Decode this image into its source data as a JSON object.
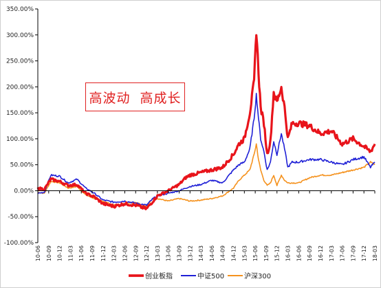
{
  "chart_data": {
    "type": "line",
    "yticks": [
      "-100.00%",
      "-50.00%",
      "0.00%",
      "50.00%",
      "100.00%",
      "150.00%",
      "200.00%",
      "250.00%",
      "300.00%",
      "350.00%"
    ],
    "ytick_values": [
      -100,
      -50,
      0,
      50,
      100,
      150,
      200,
      250,
      300,
      350
    ],
    "ylim": [
      -100,
      350
    ],
    "xticks": [
      "10-06",
      "10-09",
      "10-12",
      "11-03",
      "11-06",
      "11-09",
      "11-12",
      "12-03",
      "12-06",
      "12-09",
      "12-12",
      "13-03",
      "13-06",
      "13-09",
      "13-12",
      "14-03",
      "14-06",
      "14-09",
      "14-12",
      "15-03",
      "15-06",
      "15-09",
      "15-12",
      "16-03",
      "16-06",
      "16-09",
      "16-12",
      "17-03",
      "17-06",
      "17-09",
      "17-12",
      "18-03"
    ],
    "grid": false,
    "legend_position": "bottom",
    "annotation": "高波动  高成长",
    "series": [
      {
        "name": "创业板指",
        "color": "#e8141b",
        "x": [
          0,
          0.6,
          1.2,
          2,
          2.8,
          3.6,
          4.4,
          5.2,
          6,
          7,
          8,
          9,
          10,
          10.6,
          11,
          12,
          13,
          13.6,
          14,
          15,
          16,
          17,
          18,
          18.5,
          19,
          19.5,
          19.9,
          20.1,
          20.3,
          20.5,
          20.8,
          21.1,
          21.4,
          21.7,
          22,
          22.4,
          22.7,
          23,
          23.4,
          24,
          25,
          26,
          27,
          28,
          29,
          30,
          30.6,
          31
        ],
        "values": [
          5,
          3,
          22,
          18,
          10,
          12,
          -5,
          -12,
          -25,
          -30,
          -25,
          -28,
          -35,
          -20,
          -10,
          0,
          12,
          25,
          30,
          35,
          40,
          45,
          70,
          90,
          100,
          150,
          210,
          310,
          230,
          160,
          130,
          70,
          95,
          190,
          170,
          200,
          160,
          100,
          130,
          130,
          125,
          110,
          115,
          90,
          100,
          85,
          75,
          90
        ]
      },
      {
        "name": "中证500",
        "color": "#1f20d6",
        "x": [
          0,
          0.6,
          1.2,
          2,
          2.8,
          3.6,
          4.4,
          5.2,
          6,
          7,
          8,
          9,
          10,
          10.6,
          11,
          12,
          13,
          13.6,
          14,
          15,
          16,
          17,
          18,
          18.5,
          19,
          19.5,
          19.9,
          20.1,
          20.3,
          20.5,
          20.8,
          21.1,
          21.4,
          21.7,
          22,
          22.4,
          22.7,
          23,
          23.4,
          24,
          25,
          26,
          27,
          28,
          29,
          30,
          30.6,
          31
        ],
        "values": [
          -5,
          -3,
          30,
          28,
          15,
          22,
          5,
          -5,
          -18,
          -22,
          -20,
          -24,
          -28,
          -15,
          -10,
          -5,
          0,
          5,
          8,
          12,
          20,
          15,
          40,
          50,
          55,
          80,
          140,
          185,
          140,
          100,
          75,
          40,
          55,
          95,
          70,
          110,
          80,
          45,
          55,
          55,
          60,
          60,
          55,
          50,
          60,
          65,
          45,
          55
        ]
      },
      {
        "name": "沪深300",
        "color": "#f5921e",
        "x": [
          0,
          0.6,
          1.2,
          2,
          2.8,
          3.6,
          4.4,
          5.2,
          6,
          7,
          8,
          9,
          10,
          10.6,
          11,
          12,
          13,
          13.6,
          14,
          15,
          16,
          17,
          18,
          18.5,
          19,
          19.5,
          19.9,
          20.1,
          20.3,
          20.5,
          20.8,
          21.1,
          21.4,
          21.7,
          22,
          22.4,
          22.7,
          23,
          23.4,
          24,
          25,
          26,
          27,
          28,
          29,
          30,
          30.6,
          31
        ],
        "values": [
          -3,
          -5,
          18,
          15,
          5,
          8,
          -8,
          -15,
          -20,
          -28,
          -25,
          -22,
          -30,
          -15,
          -15,
          -20,
          -15,
          -18,
          -20,
          -18,
          -15,
          -10,
          5,
          20,
          30,
          40,
          70,
          90,
          60,
          40,
          20,
          10,
          15,
          30,
          10,
          30,
          20,
          15,
          15,
          15,
          25,
          30,
          30,
          35,
          40,
          45,
          55,
          50
        ]
      }
    ]
  }
}
